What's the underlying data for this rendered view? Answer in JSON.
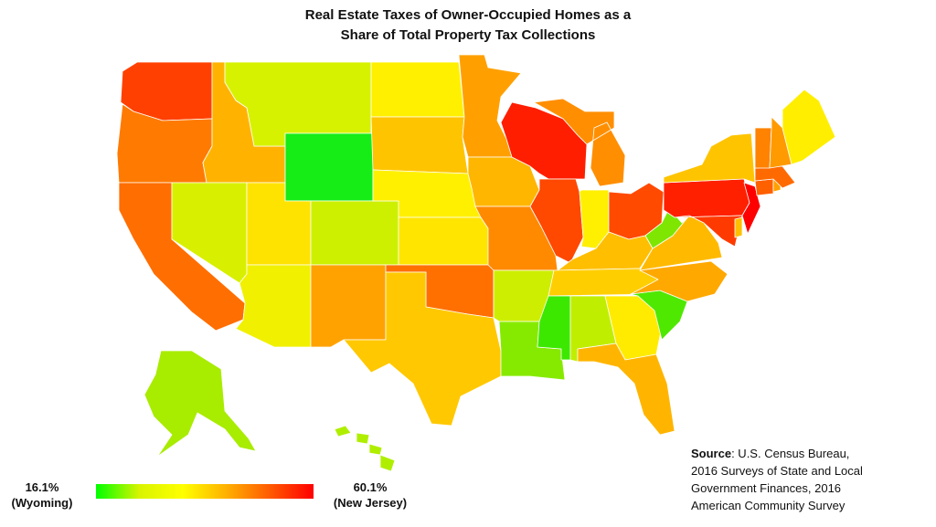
{
  "title": {
    "line1": "Real Estate Taxes of Owner-Occupied Homes as a",
    "line2": "Share of Total Property Tax Collections"
  },
  "legend": {
    "min_value": "16.1%",
    "min_state": "(Wyoming)",
    "max_value": "60.1%",
    "max_state": "(New Jersey)",
    "colors": [
      "#00ff00",
      "#d9f400",
      "#ffff00",
      "#ffb000",
      "#ff5a00",
      "#ff0000"
    ]
  },
  "source": {
    "label": "Source",
    "text_line1": ":  U.S. Census Bureau,",
    "text_line2": "2016 Surveys of State and Local",
    "text_line3": "Government Finances, 2016",
    "text_line4": "American Community Survey"
  },
  "states": {
    "WA": "#ff4000",
    "OR": "#ff7a00",
    "CA": "#ff6e00",
    "ID": "#ffb300",
    "NV": "#d8f000",
    "MT": "#d6f200",
    "WY": "#16ec16",
    "UT": "#ffe300",
    "AZ": "#f1f000",
    "CO": "#ccf000",
    "NM": "#ffa200",
    "ND": "#fff000",
    "SD": "#ffc400",
    "NE": "#fff000",
    "KS": "#ffe500",
    "OK": "#ff7000",
    "TX": "#ffc800",
    "MN": "#ffa000",
    "IA": "#ffb600",
    "MO": "#ff8a00",
    "AR": "#cdee00",
    "LA": "#86ea00",
    "WI": "#ff1e00",
    "IL": "#ff4800",
    "MI": "#ff8f00",
    "IN": "#ffef00",
    "OH": "#ff4a00",
    "KY": "#ffbe00",
    "TN": "#ffce00",
    "MS": "#3ce800",
    "AL": "#c0ee00",
    "GA": "#ffeb00",
    "FL": "#ffb500",
    "SC": "#4fe800",
    "NC": "#ffa800",
    "VA": "#ffba00",
    "WV": "#7ee600",
    "PA": "#ff2000",
    "NY": "#ffc400",
    "MD": "#ff3a00",
    "DE": "#ffc000",
    "NJ": "#ff0000",
    "CT": "#ff6000",
    "RI": "#ffa000",
    "MA": "#ff6a00",
    "VT": "#ff8200",
    "NH": "#ff9a00",
    "ME": "#ffee00",
    "AK": "#a8ec00",
    "HI": "#b0ee00"
  }
}
